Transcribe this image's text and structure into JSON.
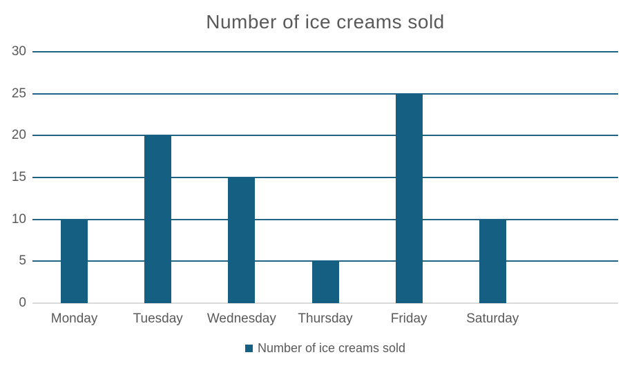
{
  "chart_data": {
    "type": "bar",
    "title": "Number of ice creams sold",
    "categories": [
      "Monday",
      "Tuesday",
      "Wednesday",
      "Thursday",
      "Friday",
      "Saturday"
    ],
    "values": [
      10,
      20,
      15,
      5,
      25,
      10
    ],
    "series_name": "Number of ice creams sold",
    "xlabel": "",
    "ylabel": "",
    "ylim": [
      0,
      30
    ],
    "yticks": [
      0,
      5,
      10,
      15,
      20,
      25,
      30
    ],
    "grid": true,
    "legend_position": "bottom",
    "empty_trailing_slots": 1,
    "colors": {
      "bar": "#156082",
      "gridline": "#1F6385",
      "zero_line": "#D9D9D9",
      "text": "#595959",
      "title": "#595959"
    }
  },
  "legend": {
    "label": "Number of ice creams sold"
  }
}
